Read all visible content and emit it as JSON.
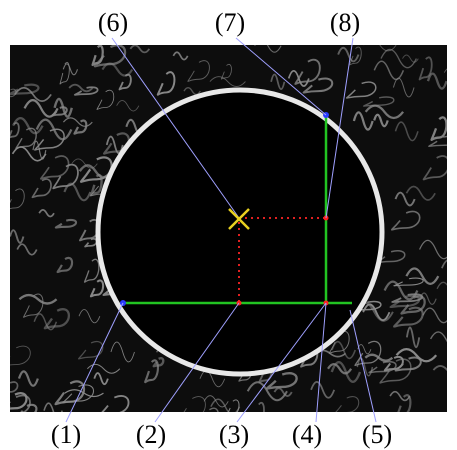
{
  "figure": {
    "colors": {
      "background": "#ffffff",
      "texture_background": "#0d0d0d",
      "texture_stroke": "#8a8a8a",
      "circle_fill": "#000000",
      "circle_rim": "#e8e8e8",
      "measure_line": "#22c422",
      "dotted_line": "#e02020",
      "center_mark": "#e8d020",
      "leader_line": "#9fa0ff",
      "edge_point": "#2b3bff",
      "measure_point": "#ff2020"
    },
    "labels": [
      {
        "id": "label-1",
        "text": "(1)"
      },
      {
        "id": "label-2",
        "text": "(2)"
      },
      {
        "id": "label-3",
        "text": "(3)"
      },
      {
        "id": "label-4",
        "text": "(4)"
      },
      {
        "id": "label-5",
        "text": "(5)"
      },
      {
        "id": "label-6",
        "text": "(6)"
      },
      {
        "id": "label-7",
        "text": "(7)"
      },
      {
        "id": "label-8",
        "text": "(8)"
      }
    ]
  }
}
